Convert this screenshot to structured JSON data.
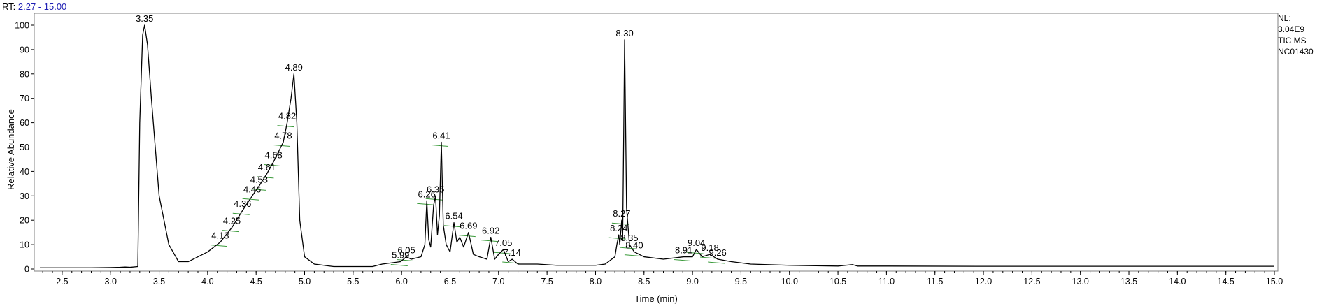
{
  "header": {
    "rt_label": "RT:",
    "rt_range": "2.27 - 15.00"
  },
  "side_info": [
    "NL:",
    "3.04E9",
    "TIC  MS",
    "NC01430"
  ],
  "colors": {
    "trace": "#000000",
    "frame": "#808080",
    "peak_marker": "#3a9a3a",
    "rt_value": "#1f1fb4"
  },
  "chart_data": {
    "type": "line",
    "xlabel": "Time (min)",
    "ylabel": "Relative Abundance",
    "xlim": [
      2.27,
      15.0
    ],
    "ylim": [
      0,
      100
    ],
    "grid": false,
    "x_ticks": [
      2.5,
      3.0,
      3.5,
      4.0,
      4.5,
      5.0,
      5.5,
      6.0,
      6.5,
      7.0,
      7.5,
      8.0,
      8.5,
      9.0,
      9.5,
      10.0,
      10.5,
      11.0,
      11.5,
      12.0,
      12.5,
      13.0,
      13.5,
      14.0,
      14.5,
      15.0
    ],
    "x_tick_labels": [
      "2.5",
      "3.0",
      "3.5",
      "4.0",
      "4.5",
      "5.0",
      "5.5",
      "6.0",
      "6.5",
      "7.0",
      "7.5",
      "8.0",
      "8.5",
      "9.0",
      "9.5",
      "10.0",
      "10.5",
      "11.0",
      "11.5",
      "12.0",
      "12.5",
      "13.0",
      "13.5",
      "14.0",
      "14.5",
      "15.0"
    ],
    "y_ticks": [
      0,
      10,
      20,
      30,
      40,
      50,
      60,
      70,
      80,
      90,
      100
    ],
    "y_tick_labels": [
      "0",
      "10",
      "20",
      "30",
      "40",
      "50",
      "60",
      "70",
      "80",
      "90",
      "100"
    ],
    "series": [
      {
        "x": [
          2.27,
          2.5,
          2.8,
          3.0,
          3.1,
          3.15,
          3.2,
          3.28,
          3.3,
          3.33,
          3.35,
          3.38,
          3.42,
          3.5,
          3.6,
          3.7,
          3.8,
          3.9,
          4.0,
          4.13,
          4.25,
          4.36,
          4.46,
          4.53,
          4.61,
          4.68,
          4.78,
          4.82,
          4.86,
          4.89,
          4.92,
          4.95,
          5.0,
          5.1,
          5.3,
          5.5,
          5.7,
          5.8,
          5.99,
          6.05,
          6.1,
          6.2,
          6.24,
          6.26,
          6.28,
          6.3,
          6.33,
          6.35,
          6.37,
          6.39,
          6.41,
          6.43,
          6.46,
          6.5,
          6.54,
          6.57,
          6.6,
          6.64,
          6.69,
          6.74,
          6.8,
          6.88,
          6.92,
          6.96,
          7.0,
          7.05,
          7.1,
          7.14,
          7.2,
          7.4,
          7.6,
          7.8,
          8.0,
          8.1,
          8.2,
          8.22,
          8.24,
          8.25,
          8.27,
          8.28,
          8.3,
          8.32,
          8.35,
          8.4,
          8.5,
          8.7,
          8.91,
          9.0,
          9.04,
          9.1,
          9.18,
          9.26,
          9.4,
          9.6,
          10.0,
          10.5,
          10.65,
          10.7,
          11.0,
          12.0,
          13.0,
          14.0,
          15.0
        ],
        "y": [
          0.5,
          0.5,
          0.5,
          0.6,
          0.7,
          0.8,
          0.7,
          1.0,
          60,
          96,
          100,
          92,
          70,
          30,
          10,
          3,
          3,
          5,
          7,
          11,
          17,
          24,
          30,
          34,
          39,
          44,
          52,
          60,
          70,
          80,
          60,
          20,
          5,
          2,
          1,
          1,
          1,
          2,
          3,
          5,
          4,
          5,
          10,
          28,
          12,
          9,
          26,
          30,
          14,
          22,
          52,
          18,
          10,
          7,
          19,
          11,
          13,
          9,
          15,
          6,
          5,
          4,
          13,
          4,
          6,
          8,
          3,
          4,
          2,
          2,
          1.5,
          1.5,
          1.5,
          2,
          5,
          10,
          14,
          10,
          20,
          12,
          94,
          25,
          10,
          7,
          5,
          4,
          5,
          5,
          8,
          5,
          6,
          4,
          3,
          2,
          1.5,
          1.2,
          1.8,
          1.2,
          1.2,
          1.1,
          1.1,
          1.1,
          1.1
        ]
      }
    ],
    "peak_labels": [
      {
        "text": "3.35",
        "x": 3.35,
        "y": 100
      },
      {
        "text": "4.89",
        "x": 4.89,
        "y": 80
      },
      {
        "text": "4.82",
        "x": 4.82,
        "y": 60
      },
      {
        "text": "4.78",
        "x": 4.78,
        "y": 52
      },
      {
        "text": "4.68",
        "x": 4.68,
        "y": 44
      },
      {
        "text": "4.61",
        "x": 4.61,
        "y": 39
      },
      {
        "text": "4.53",
        "x": 4.53,
        "y": 34
      },
      {
        "text": "4.46",
        "x": 4.46,
        "y": 30
      },
      {
        "text": "4.36",
        "x": 4.36,
        "y": 24
      },
      {
        "text": "4.25",
        "x": 4.25,
        "y": 17
      },
      {
        "text": "4.13",
        "x": 4.13,
        "y": 11
      },
      {
        "text": "5.99",
        "x": 5.99,
        "y": 3
      },
      {
        "text": "6.05",
        "x": 6.05,
        "y": 5
      },
      {
        "text": "6.26",
        "x": 6.26,
        "y": 28
      },
      {
        "text": "6.35",
        "x": 6.35,
        "y": 30
      },
      {
        "text": "6.41",
        "x": 6.41,
        "y": 52
      },
      {
        "text": "6.54",
        "x": 6.54,
        "y": 19
      },
      {
        "text": "6.69",
        "x": 6.69,
        "y": 15
      },
      {
        "text": "6.92",
        "x": 6.92,
        "y": 13
      },
      {
        "text": "7.05",
        "x": 7.05,
        "y": 8
      },
      {
        "text": "7.14",
        "x": 7.14,
        "y": 4
      },
      {
        "text": "8.24",
        "x": 8.24,
        "y": 14
      },
      {
        "text": "8.27",
        "x": 8.27,
        "y": 20
      },
      {
        "text": "8.30",
        "x": 8.3,
        "y": 94
      },
      {
        "text": "8.35",
        "x": 8.35,
        "y": 10
      },
      {
        "text": "8.40",
        "x": 8.4,
        "y": 7
      },
      {
        "text": "8.91",
        "x": 8.91,
        "y": 5
      },
      {
        "text": "9.04",
        "x": 9.04,
        "y": 8
      },
      {
        "text": "9.18",
        "x": 9.18,
        "y": 6
      },
      {
        "text": "9.26",
        "x": 9.26,
        "y": 4
      }
    ]
  }
}
